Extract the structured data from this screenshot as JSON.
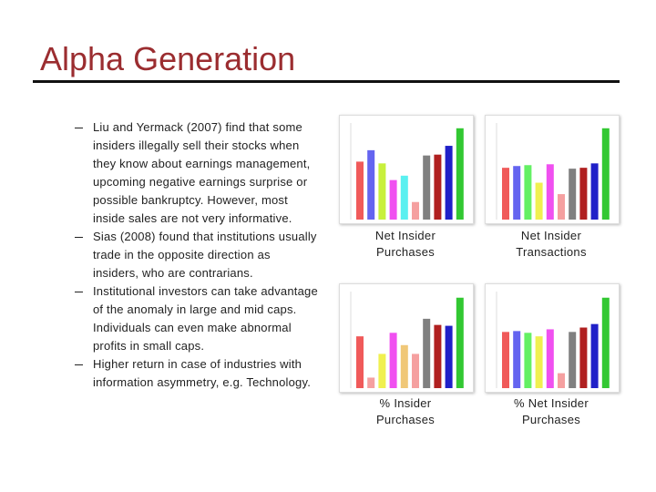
{
  "title": "Alpha Generation",
  "bullets": [
    "Liu and Yermack (2007) find that some insiders illegally sell their stocks when they know about earnings management, upcoming negative earnings surprise or possible bankruptcy. However, most inside sales are not very informative.",
    "Sias (2008) found that institutions usually trade in the opposite direction as insiders, who are contrarians.",
    "Institutional investors can take advantage of the anomaly in large and mid caps. Individuals can even make abnormal profits in small caps.",
    "Higher return in case of industries with information asymmetry, e.g. Technology."
  ],
  "chart_data": [
    {
      "type": "bar",
      "label": "Net Insider Purchases",
      "ylim": [
        0,
        110
      ],
      "colors": [
        "#f05a5a",
        "#6464f0",
        "#c8f03c",
        "#f050f0",
        "#5af0f0",
        "#f5a0a0",
        "#808080",
        "#b02020",
        "#2020c8",
        "#32c832"
      ],
      "values": [
        66,
        79,
        64,
        45,
        50,
        20,
        73,
        74,
        84,
        104
      ]
    },
    {
      "type": "bar",
      "label": "Net Insider Transactions",
      "ylim": [
        0,
        110
      ],
      "colors": [
        "#f05a5a",
        "#6464f0",
        "#64f064",
        "#f0f050",
        "#f050f0",
        "#f5a0a0",
        "#808080",
        "#b02020",
        "#2020c8",
        "#32c832"
      ],
      "values": [
        59,
        61,
        62,
        42,
        63,
        29,
        58,
        59,
        64,
        104
      ]
    },
    {
      "type": "bar",
      "label": "% Insider Purchases",
      "ylim": [
        0,
        110
      ],
      "colors": [
        "#f05a5a",
        "#f5a0a0",
        "#f0f050",
        "#f050f0",
        "#f0c878",
        "#f5a0a0",
        "#808080",
        "#b02020",
        "#2020c8",
        "#32c832"
      ],
      "values": [
        59,
        12,
        39,
        63,
        49,
        39,
        79,
        72,
        71,
        103
      ]
    },
    {
      "type": "bar",
      "label": "% Net Insider Purchases",
      "ylim": [
        0,
        110
      ],
      "colors": [
        "#f05a5a",
        "#6464f0",
        "#64f064",
        "#f0f050",
        "#f050f0",
        "#f5a0a0",
        "#808080",
        "#b02020",
        "#2020c8",
        "#32c832"
      ],
      "values": [
        64,
        65,
        63,
        59,
        67,
        17,
        64,
        69,
        73,
        103
      ]
    }
  ]
}
